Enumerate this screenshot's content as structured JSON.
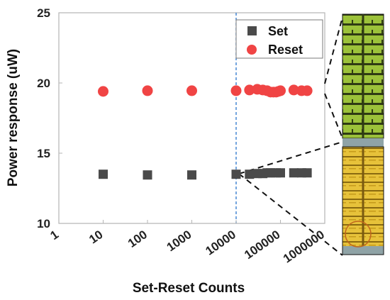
{
  "chart_data": {
    "type": "scatter",
    "title": "",
    "xlabel": "Set-Reset Counts",
    "ylabel": "Power response (uW)",
    "xscale": "log",
    "xlim": [
      1,
      1000000
    ],
    "ylim": [
      10,
      25
    ],
    "x_ticks": [
      1,
      10,
      100,
      1000,
      10000,
      100000,
      1000000
    ],
    "x_tick_labels": [
      "1",
      "10",
      "100",
      "1000",
      "10000",
      "100000",
      "1000000"
    ],
    "y_ticks": [
      10,
      15,
      20,
      25
    ],
    "y_tick_labels": [
      "10",
      "15",
      "20",
      "25"
    ],
    "grid": false,
    "legend_position": "top-right",
    "vertical_reference_line": {
      "x": 10000,
      "style": "dashed",
      "color": "#3a7fd0"
    },
    "series": [
      {
        "name": "Set",
        "marker": "square",
        "color": "#4a4a4a",
        "x": [
          10,
          100,
          1000,
          10000,
          20000,
          30000,
          40000,
          50000,
          60000,
          80000,
          100000,
          200000,
          300000,
          400000
        ],
        "y": [
          13.5,
          13.45,
          13.45,
          13.5,
          13.5,
          13.55,
          13.55,
          13.6,
          13.6,
          13.6,
          13.6,
          13.6,
          13.6,
          13.6
        ]
      },
      {
        "name": "Reset",
        "marker": "circle",
        "color": "#f04444",
        "x": [
          10,
          100,
          1000,
          10000,
          20000,
          30000,
          40000,
          50000,
          60000,
          70000,
          80000,
          90000,
          100000,
          200000,
          300000,
          400000
        ],
        "y": [
          19.4,
          19.45,
          19.45,
          19.45,
          19.5,
          19.55,
          19.5,
          19.45,
          19.35,
          19.35,
          19.35,
          19.4,
          19.45,
          19.5,
          19.45,
          19.45
        ]
      }
    ]
  }
}
